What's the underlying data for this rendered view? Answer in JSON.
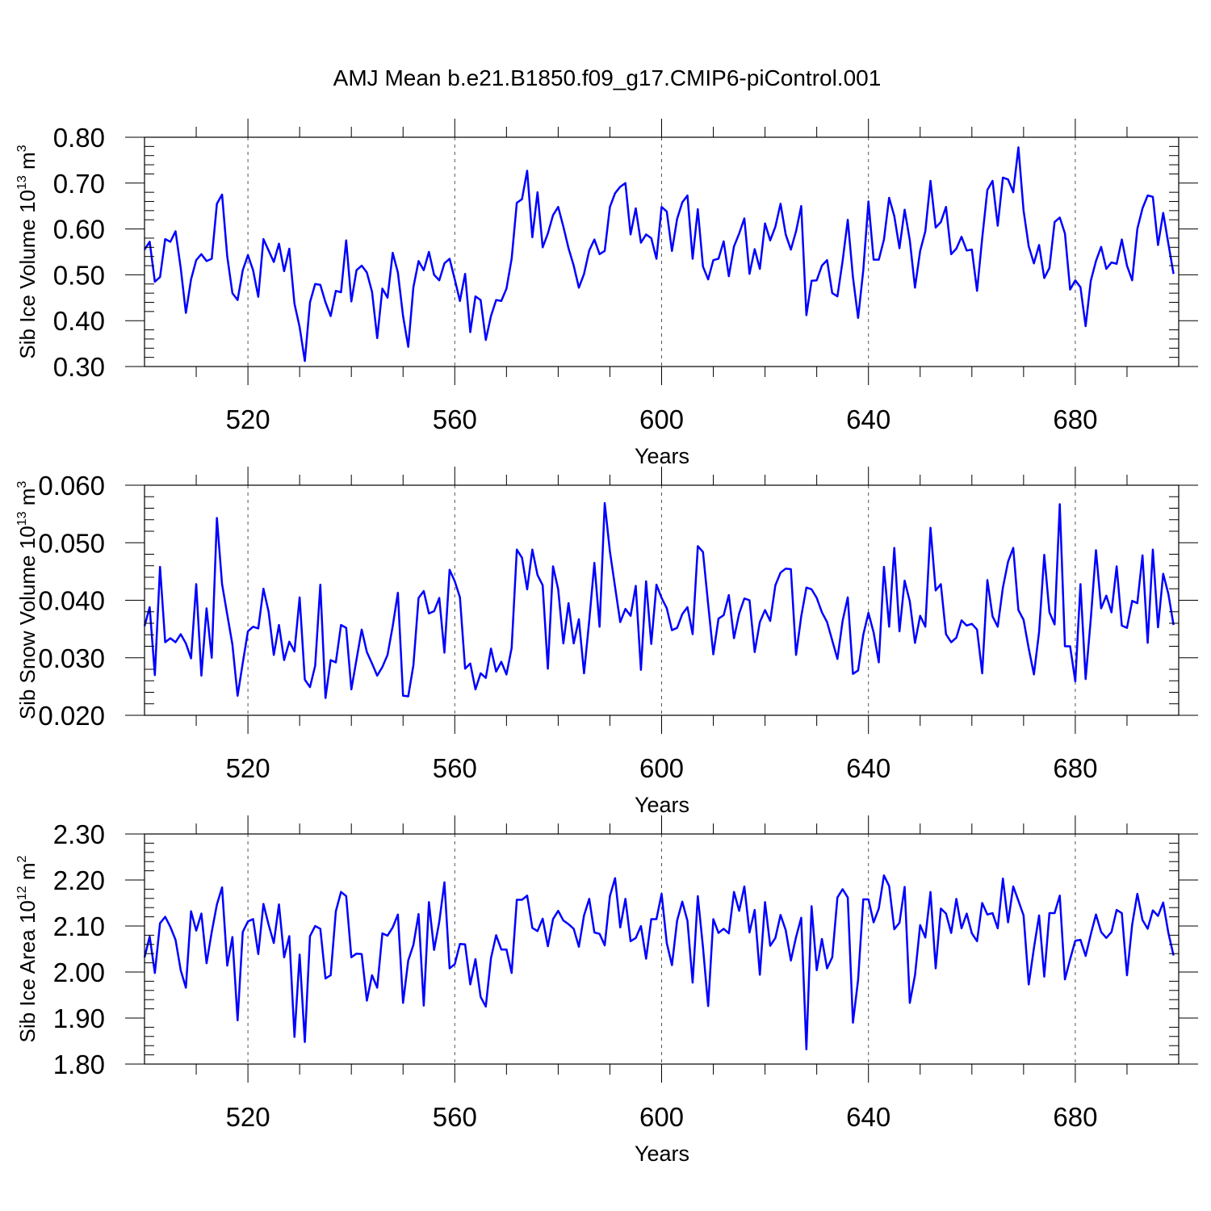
{
  "title": "AMJ Mean b.e21.B1850.f09_g17.CMIP6-piControl.001",
  "chart_data": [
    {
      "type": "line",
      "ylabel": {
        "main": "Sib Ice Volume 10",
        "exp": "13",
        "unit": " m",
        "unit_exp": "3"
      },
      "xlabel": "Years",
      "xlim": [
        500,
        700
      ],
      "ylim": [
        0.3,
        0.8
      ],
      "xticks": [
        520,
        560,
        600,
        640,
        680
      ],
      "yticks": [
        0.3,
        0.4,
        0.5,
        0.6,
        0.7,
        0.8
      ],
      "ytick_labels": [
        "0.30",
        "0.40",
        "0.50",
        "0.60",
        "0.70",
        "0.80"
      ],
      "color": "#0000ff",
      "x_start": 500,
      "values": [
        0.555,
        0.572,
        0.485,
        0.495,
        0.578,
        0.572,
        0.595,
        0.515,
        0.417,
        0.49,
        0.532,
        0.545,
        0.53,
        0.535,
        0.655,
        0.675,
        0.54,
        0.46,
        0.445,
        0.51,
        0.543,
        0.51,
        0.452,
        0.578,
        0.553,
        0.528,
        0.568,
        0.508,
        0.557,
        0.437,
        0.386,
        0.312,
        0.44,
        0.48,
        0.478,
        0.44,
        0.41,
        0.465,
        0.462,
        0.575,
        0.442,
        0.51,
        0.52,
        0.505,
        0.463,
        0.362,
        0.47,
        0.45,
        0.548,
        0.505,
        0.41,
        0.343,
        0.473,
        0.53,
        0.51,
        0.55,
        0.5,
        0.488,
        0.525,
        0.535,
        0.49,
        0.443,
        0.502,
        0.375,
        0.453,
        0.445,
        0.358,
        0.41,
        0.445,
        0.443,
        0.47,
        0.535,
        0.657,
        0.665,
        0.727,
        0.582,
        0.68,
        0.56,
        0.59,
        0.63,
        0.648,
        0.605,
        0.558,
        0.52,
        0.472,
        0.502,
        0.553,
        0.577,
        0.545,
        0.552,
        0.648,
        0.678,
        0.692,
        0.7,
        0.588,
        0.645,
        0.57,
        0.588,
        0.58,
        0.535,
        0.648,
        0.638,
        0.552,
        0.622,
        0.658,
        0.673,
        0.535,
        0.643,
        0.518,
        0.49,
        0.532,
        0.535,
        0.573,
        0.497,
        0.562,
        0.59,
        0.623,
        0.502,
        0.556,
        0.513,
        0.612,
        0.575,
        0.605,
        0.655,
        0.588,
        0.555,
        0.595,
        0.65,
        0.412,
        0.487,
        0.488,
        0.52,
        0.532,
        0.46,
        0.453,
        0.53,
        0.62,
        0.495,
        0.406,
        0.51,
        0.66,
        0.533,
        0.533,
        0.577,
        0.668,
        0.628,
        0.558,
        0.642,
        0.575,
        0.472,
        0.552,
        0.595,
        0.705,
        0.603,
        0.615,
        0.648,
        0.545,
        0.557,
        0.583,
        0.553,
        0.555,
        0.465,
        0.58,
        0.685,
        0.705,
        0.607,
        0.712,
        0.708,
        0.68,
        0.778,
        0.64,
        0.562,
        0.525,
        0.565,
        0.493,
        0.515,
        0.615,
        0.625,
        0.59,
        0.468,
        0.488,
        0.473,
        0.388,
        0.487,
        0.53,
        0.561,
        0.513,
        0.527,
        0.524,
        0.577,
        0.52,
        0.488,
        0.6,
        0.645,
        0.673,
        0.67,
        0.565,
        0.635,
        0.568,
        0.502
      ]
    },
    {
      "type": "line",
      "ylabel": {
        "main": "Sib Snow Volume 10",
        "exp": "13",
        "unit": " m",
        "unit_exp": "3"
      },
      "xlabel": "Years",
      "xlim": [
        500,
        700
      ],
      "ylim": [
        0.02,
        0.06
      ],
      "xticks": [
        520,
        560,
        600,
        640,
        680
      ],
      "yticks": [
        0.02,
        0.03,
        0.04,
        0.05,
        0.06
      ],
      "ytick_labels": [
        "0.020",
        "0.030",
        "0.040",
        "0.050",
        "0.060"
      ],
      "color": "#0000ff",
      "x_start": 500,
      "values": [
        0.0355,
        0.0388,
        0.027,
        0.0458,
        0.0327,
        0.0334,
        0.0327,
        0.0341,
        0.0325,
        0.0299,
        0.0428,
        0.0269,
        0.0386,
        0.03,
        0.0543,
        0.0428,
        0.0375,
        0.0323,
        0.0234,
        0.0291,
        0.0346,
        0.0354,
        0.0351,
        0.042,
        0.038,
        0.0305,
        0.0357,
        0.0296,
        0.0328,
        0.0311,
        0.0405,
        0.0262,
        0.0249,
        0.0286,
        0.0427,
        0.023,
        0.0296,
        0.0292,
        0.0357,
        0.0352,
        0.0245,
        0.0297,
        0.0349,
        0.031,
        0.029,
        0.0269,
        0.0284,
        0.0305,
        0.0355,
        0.0413,
        0.0234,
        0.0233,
        0.0287,
        0.0404,
        0.0416,
        0.0377,
        0.0381,
        0.0404,
        0.0309,
        0.0453,
        0.0433,
        0.0405,
        0.0281,
        0.029,
        0.0245,
        0.0273,
        0.0265,
        0.0316,
        0.0276,
        0.0293,
        0.0271,
        0.0317,
        0.0488,
        0.0474,
        0.0419,
        0.0488,
        0.0444,
        0.0426,
        0.0281,
        0.0459,
        0.0419,
        0.0325,
        0.0395,
        0.0325,
        0.0367,
        0.0273,
        0.0364,
        0.0465,
        0.0354,
        0.0569,
        0.0485,
        0.0423,
        0.0362,
        0.0385,
        0.0373,
        0.0425,
        0.0279,
        0.0433,
        0.0324,
        0.0427,
        0.0404,
        0.0386,
        0.0348,
        0.0352,
        0.0376,
        0.0388,
        0.0341,
        0.0494,
        0.0484,
        0.0393,
        0.0306,
        0.0368,
        0.0374,
        0.0409,
        0.0334,
        0.0377,
        0.0403,
        0.04,
        0.031,
        0.0362,
        0.0383,
        0.0364,
        0.0426,
        0.0448,
        0.0455,
        0.0454,
        0.0305,
        0.0372,
        0.0422,
        0.0419,
        0.0404,
        0.0379,
        0.0362,
        0.033,
        0.0298,
        0.0364,
        0.0405,
        0.0272,
        0.0278,
        0.034,
        0.0378,
        0.0344,
        0.0292,
        0.0458,
        0.0354,
        0.0491,
        0.0346,
        0.0434,
        0.0398,
        0.0326,
        0.0373,
        0.0354,
        0.0526,
        0.0417,
        0.0428,
        0.0341,
        0.0327,
        0.0335,
        0.0365,
        0.0356,
        0.0359,
        0.0349,
        0.0273,
        0.0435,
        0.0372,
        0.0354,
        0.0422,
        0.0467,
        0.0491,
        0.0383,
        0.0366,
        0.0316,
        0.0271,
        0.0345,
        0.0479,
        0.0379,
        0.0358,
        0.0567,
        0.032,
        0.032,
        0.0259,
        0.0428,
        0.0263,
        0.0368,
        0.0487,
        0.0386,
        0.0408,
        0.0379,
        0.0459,
        0.0356,
        0.0352,
        0.0399,
        0.0395,
        0.0478,
        0.0326,
        0.0488,
        0.0353,
        0.0446,
        0.0411,
        0.0357
      ]
    },
    {
      "type": "line",
      "ylabel": {
        "main": "Sib Ice Area 10",
        "exp": "12",
        "unit": " m",
        "unit_exp": "2"
      },
      "xlabel": "Years",
      "xlim": [
        500,
        700
      ],
      "ylim": [
        1.8,
        2.3
      ],
      "xticks": [
        520,
        560,
        600,
        640,
        680
      ],
      "yticks": [
        1.8,
        1.9,
        2.0,
        2.1,
        2.2,
        2.3
      ],
      "ytick_labels": [
        "1.80",
        "1.90",
        "2.00",
        "2.10",
        "2.20",
        "2.30"
      ],
      "color": "#0000ff",
      "x_start": 500,
      "values": [
        2.032,
        2.077,
        1.998,
        2.106,
        2.12,
        2.098,
        2.07,
        2.004,
        1.966,
        2.132,
        2.09,
        2.127,
        2.019,
        2.087,
        2.147,
        2.184,
        2.014,
        2.076,
        1.895,
        2.087,
        2.11,
        2.115,
        2.039,
        2.148,
        2.103,
        2.063,
        2.147,
        2.032,
        2.078,
        1.859,
        2.038,
        1.848,
        2.078,
        2.1,
        2.094,
        1.986,
        1.993,
        2.132,
        2.174,
        2.165,
        2.032,
        2.04,
        2.039,
        1.938,
        1.993,
        1.966,
        2.084,
        2.079,
        2.097,
        2.125,
        1.933,
        2.025,
        2.059,
        2.126,
        1.927,
        2.152,
        2.048,
        2.109,
        2.195,
        2.008,
        2.017,
        2.061,
        2.06,
        1.973,
        2.028,
        1.946,
        1.925,
        2.03,
        2.08,
        2.049,
        2.049,
        1.998,
        2.157,
        2.157,
        2.166,
        2.096,
        2.089,
        2.116,
        2.056,
        2.115,
        2.133,
        2.112,
        2.104,
        2.094,
        2.055,
        2.123,
        2.159,
        2.086,
        2.083,
        2.058,
        2.165,
        2.204,
        2.097,
        2.159,
        2.067,
        2.074,
        2.1,
        2.029,
        2.115,
        2.115,
        2.17,
        2.063,
        2.015,
        2.112,
        2.153,
        2.111,
        1.977,
        2.165,
        2.054,
        1.926,
        2.115,
        2.085,
        2.094,
        2.084,
        2.174,
        2.133,
        2.186,
        2.086,
        2.135,
        1.994,
        2.152,
        2.057,
        2.074,
        2.124,
        2.091,
        2.025,
        2.076,
        2.118,
        1.832,
        2.143,
        2.004,
        2.072,
        2.008,
        2.032,
        2.162,
        2.18,
        2.162,
        1.89,
        1.983,
        2.158,
        2.158,
        2.108,
        2.138,
        2.21,
        2.187,
        2.093,
        2.107,
        2.185,
        1.933,
        1.993,
        2.102,
        2.075,
        2.174,
        2.008,
        2.138,
        2.127,
        2.085,
        2.159,
        2.095,
        2.127,
        2.084,
        2.067,
        2.15,
        2.125,
        2.128,
        2.095,
        2.203,
        2.108,
        2.186,
        2.155,
        2.123,
        1.973,
        2.052,
        2.123,
        1.99,
        2.128,
        2.128,
        2.166,
        1.984,
        2.028,
        2.068,
        2.07,
        2.035,
        2.082,
        2.125,
        2.087,
        2.074,
        2.087,
        2.135,
        2.128,
        1.993,
        2.103,
        2.17,
        2.113,
        2.094,
        2.134,
        2.122,
        2.151,
        2.085,
        2.036
      ]
    }
  ]
}
